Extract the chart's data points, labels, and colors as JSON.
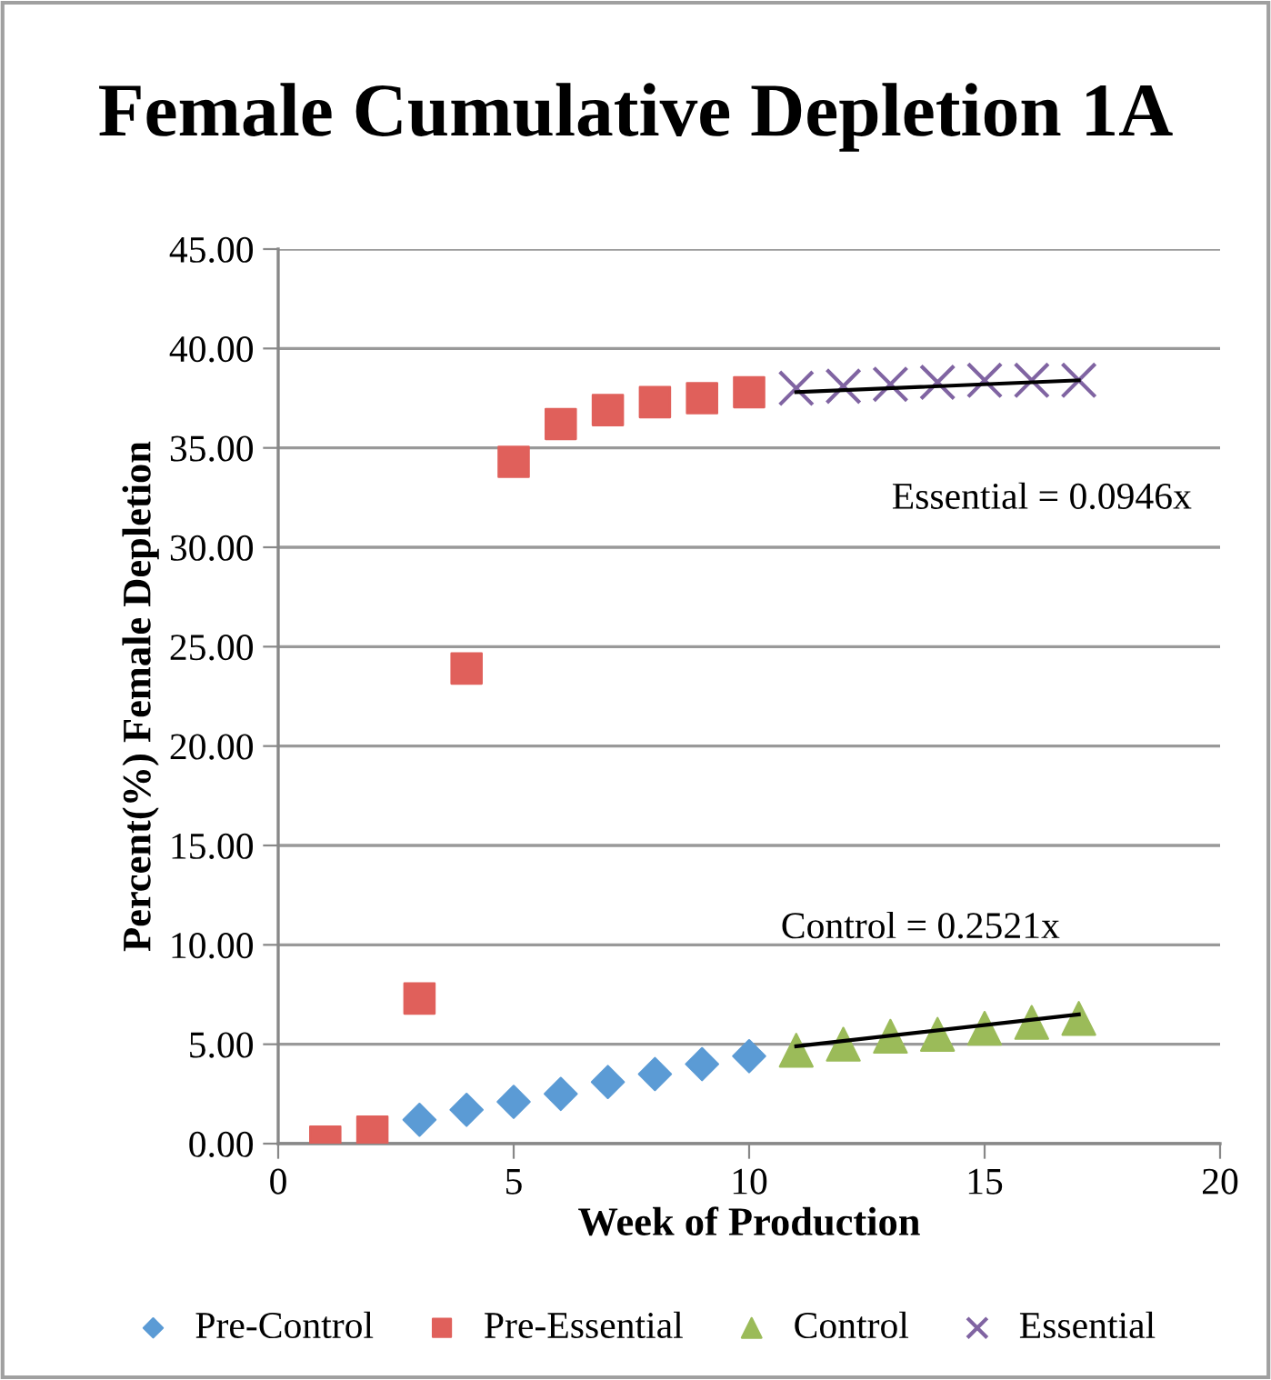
{
  "chart_data": {
    "type": "scatter",
    "title": "Female Cumulative Depletion 1A",
    "xlabel": "Week of Production",
    "ylabel": "Percent(%) Female Depletion",
    "series": [
      {
        "name": "Pre-Control",
        "color": "#5b9bd5",
        "marker": "diamond",
        "x": [
          3,
          4,
          5,
          6,
          7,
          8,
          9,
          10
        ],
        "values": [
          1.2,
          1.7,
          2.1,
          2.5,
          3.1,
          3.5,
          4.0,
          4.4
        ]
      },
      {
        "name": "Pre-Essential",
        "color": "#e0605b",
        "marker": "square",
        "x": [
          1,
          2,
          3,
          4,
          5,
          6,
          7,
          8,
          9,
          10
        ],
        "values": [
          0.1,
          0.6,
          7.3,
          23.9,
          34.3,
          36.2,
          36.9,
          37.3,
          37.5,
          37.8
        ]
      },
      {
        "name": "Control",
        "color": "#9bbb59",
        "marker": "triangle",
        "x": [
          11,
          12,
          13,
          14,
          15,
          16,
          17
        ],
        "values": [
          4.7,
          5.0,
          5.4,
          5.5,
          5.8,
          6.1,
          6.3
        ]
      },
      {
        "name": "Essential",
        "color": "#8064a2",
        "marker": "cross",
        "x": [
          11,
          12,
          13,
          14,
          15,
          16,
          17
        ],
        "values": [
          38.0,
          38.1,
          38.2,
          38.3,
          38.4,
          38.4,
          38.4
        ]
      },
      {
        "type": "line",
        "color": "#000000",
        "marker": "none",
        "x": [
          11,
          17
        ],
        "values": [
          37.8,
          38.4
        ]
      },
      {
        "type": "line",
        "color": "#000000",
        "marker": "none",
        "x": [
          11,
          17
        ],
        "values": [
          4.9,
          6.5
        ]
      }
    ],
    "annotations": [
      "Essential = 0.0946x",
      "Control = 0.2521x"
    ],
    "xlim": [
      0,
      20
    ],
    "xticks": [
      0,
      5,
      10,
      15,
      20
    ],
    "ylim": [
      0,
      45
    ],
    "yticks": [
      {
        "value": 0,
        "label": "0.00"
      },
      {
        "value": 5,
        "label": "5.00"
      },
      {
        "value": 10,
        "label": "10.00"
      },
      {
        "value": 15,
        "label": "15.00"
      },
      {
        "value": 20,
        "label": "20.00"
      },
      {
        "value": 25,
        "label": "25.00"
      },
      {
        "value": 30,
        "label": "30.00"
      },
      {
        "value": 35,
        "label": "35.00"
      },
      {
        "value": 40,
        "label": "40.00"
      },
      {
        "value": 45,
        "label": "45.00"
      }
    ],
    "grid": "y",
    "legend": "bottom"
  }
}
